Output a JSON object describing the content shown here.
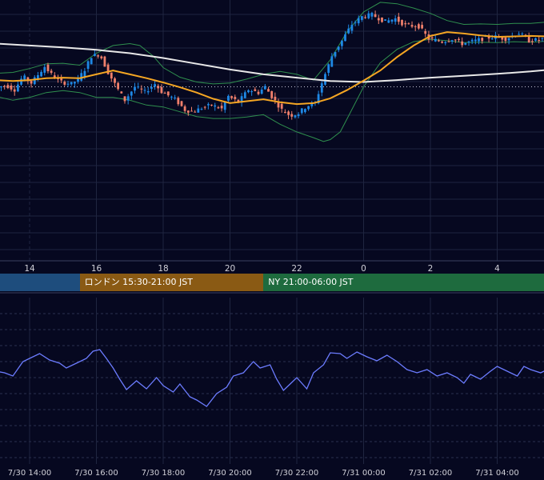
{
  "chart_data": {
    "type": "candlestick",
    "x_ticks_top": [
      "14",
      "16",
      "18",
      "20",
      "22",
      "0",
      "2",
      "4"
    ],
    "x_ticks_bottom": [
      "7/30 14:00",
      "7/30 16:00",
      "7/30 18:00",
      "7/30 20:00",
      "7/30 22:00",
      "7/31 00:00",
      "7/31 02:00",
      "7/31 04:00"
    ],
    "sessions": [
      {
        "label": "",
        "color": "#1e4d7d",
        "start_hour": 13.0,
        "end_hour": 15.5
      },
      {
        "label": "ロンドン 15:30-21:00 JST",
        "color": "#8a5a14",
        "start_hour": 15.5,
        "end_hour": 21.0
      },
      {
        "label": "NY 21:00-06:00 JST",
        "color": "#1e6b3e",
        "start_hour": 21.0,
        "end_hour": 30.0
      }
    ],
    "colors": {
      "background": "#060820",
      "up": "#1e88e5",
      "down": "#ef7f6b",
      "sma_short": "#f5a623",
      "sma_long": "#e8e8e8",
      "bands": "#2f8f4e",
      "oscillator": "#6c7cff",
      "grid": "#1f2540"
    },
    "candle_path": [
      [
        13.0,
        -0.2
      ],
      [
        13.35,
        0.3
      ],
      [
        13.6,
        -0.6
      ],
      [
        13.85,
        2.2
      ],
      [
        14.1,
        0.8
      ],
      [
        14.5,
        4.2
      ],
      [
        14.75,
        2.2
      ],
      [
        15.0,
        1.0
      ],
      [
        15.3,
        0.6
      ],
      [
        15.5,
        1.6
      ],
      [
        15.7,
        3.6
      ],
      [
        15.9,
        6.4
      ],
      [
        16.15,
        6.8
      ],
      [
        16.4,
        3.0
      ],
      [
        16.7,
        -0.6
      ],
      [
        16.9,
        -2.8
      ],
      [
        17.2,
        0.0
      ],
      [
        17.5,
        -1.1
      ],
      [
        17.8,
        0.6
      ],
      [
        18.0,
        -1.0
      ],
      [
        18.4,
        -2.6
      ],
      [
        18.7,
        -4.8
      ],
      [
        18.95,
        -5.2
      ],
      [
        19.2,
        -4.4
      ],
      [
        19.5,
        -3.8
      ],
      [
        19.8,
        -4.6
      ],
      [
        20.0,
        -2.0
      ],
      [
        20.3,
        -3.2
      ],
      [
        20.6,
        -0.6
      ],
      [
        20.9,
        -1.2
      ],
      [
        21.1,
        0.0
      ],
      [
        21.3,
        -2.0
      ],
      [
        21.6,
        -4.8
      ],
      [
        21.85,
        -6.0
      ],
      [
        22.1,
        -5.5
      ],
      [
        22.35,
        -4.0
      ],
      [
        22.6,
        -3.4
      ],
      [
        22.8,
        0.8
      ],
      [
        23.1,
        6.4
      ],
      [
        23.4,
        9.6
      ],
      [
        23.7,
        13.0
      ],
      [
        24.0,
        14.6
      ],
      [
        24.3,
        15.0
      ],
      [
        24.7,
        13.6
      ],
      [
        25.0,
        14.2
      ],
      [
        25.3,
        12.8
      ],
      [
        25.7,
        12.6
      ],
      [
        26.0,
        10.0
      ],
      [
        26.4,
        9.4
      ],
      [
        26.7,
        10.0
      ],
      [
        27.0,
        9.0
      ],
      [
        27.4,
        9.6
      ],
      [
        27.7,
        10.2
      ],
      [
        28.0,
        10.4
      ],
      [
        28.3,
        10.0
      ],
      [
        28.7,
        11.2
      ],
      [
        29.0,
        9.6
      ],
      [
        29.3,
        9.8
      ],
      [
        29.6,
        10.4
      ],
      [
        29.85,
        9.2
      ]
    ],
    "sma_short": [
      [
        13.0,
        1.4
      ],
      [
        13.5,
        1.2
      ],
      [
        14.0,
        1.4
      ],
      [
        14.5,
        1.8
      ],
      [
        15.0,
        1.9
      ],
      [
        15.5,
        1.8
      ],
      [
        16.0,
        2.6
      ],
      [
        16.5,
        3.4
      ],
      [
        17.0,
        2.6
      ],
      [
        17.5,
        1.8
      ],
      [
        18.0,
        0.9
      ],
      [
        18.5,
        -0.1
      ],
      [
        19.0,
        -1.2
      ],
      [
        19.5,
        -2.5
      ],
      [
        20.0,
        -3.4
      ],
      [
        20.5,
        -3.0
      ],
      [
        21.0,
        -2.6
      ],
      [
        21.5,
        -3.2
      ],
      [
        22.0,
        -3.6
      ],
      [
        22.5,
        -3.4
      ],
      [
        23.0,
        -2.4
      ],
      [
        23.5,
        -0.7
      ],
      [
        24.0,
        1.3
      ],
      [
        24.5,
        3.4
      ],
      [
        25.0,
        6.2
      ],
      [
        25.5,
        8.6
      ],
      [
        26.0,
        10.6
      ],
      [
        26.5,
        11.4
      ],
      [
        27.0,
        11.1
      ],
      [
        27.5,
        10.7
      ],
      [
        28.0,
        10.4
      ],
      [
        28.5,
        10.5
      ],
      [
        29.0,
        10.6
      ],
      [
        29.5,
        10.5
      ],
      [
        29.9,
        10.0
      ]
    ],
    "sma_long": [
      [
        13.0,
        9.0
      ],
      [
        14.0,
        8.6
      ],
      [
        15.0,
        8.2
      ],
      [
        16.0,
        7.7
      ],
      [
        17.0,
        7.0
      ],
      [
        18.0,
        6.0
      ],
      [
        19.0,
        4.8
      ],
      [
        20.0,
        3.6
      ],
      [
        21.0,
        2.6
      ],
      [
        22.0,
        1.9
      ],
      [
        23.0,
        1.2
      ],
      [
        24.0,
        1.0
      ],
      [
        25.0,
        1.4
      ],
      [
        26.0,
        1.9
      ],
      [
        27.0,
        2.3
      ],
      [
        28.0,
        2.7
      ],
      [
        29.0,
        3.2
      ],
      [
        29.9,
        3.8
      ]
    ],
    "band_upper": [
      [
        13.0,
        2.8
      ],
      [
        13.5,
        3.0
      ],
      [
        14.0,
        3.8
      ],
      [
        14.5,
        4.8
      ],
      [
        15.0,
        4.9
      ],
      [
        15.5,
        4.5
      ],
      [
        16.0,
        7.0
      ],
      [
        16.5,
        8.6
      ],
      [
        17.0,
        9.0
      ],
      [
        17.3,
        8.6
      ],
      [
        17.7,
        6.4
      ],
      [
        18.0,
        4.0
      ],
      [
        18.5,
        2.0
      ],
      [
        19.0,
        1.0
      ],
      [
        19.5,
        0.6
      ],
      [
        20.0,
        0.8
      ],
      [
        20.5,
        1.6
      ],
      [
        21.0,
        2.6
      ],
      [
        21.5,
        3.2
      ],
      [
        22.0,
        2.6
      ],
      [
        22.5,
        1.4
      ],
      [
        23.0,
        5.6
      ],
      [
        23.5,
        11.4
      ],
      [
        24.0,
        15.6
      ],
      [
        24.5,
        17.6
      ],
      [
        25.0,
        17.3
      ],
      [
        25.5,
        16.4
      ],
      [
        26.0,
        15.3
      ],
      [
        26.5,
        13.8
      ],
      [
        27.0,
        13.0
      ],
      [
        27.5,
        13.1
      ],
      [
        28.0,
        13.0
      ],
      [
        28.5,
        13.2
      ],
      [
        29.0,
        13.2
      ],
      [
        29.5,
        13.5
      ],
      [
        29.9,
        13.4
      ]
    ],
    "band_lower": [
      [
        13.0,
        -2.0
      ],
      [
        13.5,
        -2.8
      ],
      [
        14.0,
        -2.2
      ],
      [
        14.5,
        -1.2
      ],
      [
        15.0,
        -0.8
      ],
      [
        15.5,
        -1.2
      ],
      [
        16.0,
        -2.2
      ],
      [
        16.5,
        -2.2
      ],
      [
        17.0,
        -2.8
      ],
      [
        17.5,
        -3.8
      ],
      [
        18.0,
        -4.2
      ],
      [
        18.5,
        -5.2
      ],
      [
        19.0,
        -6.2
      ],
      [
        19.5,
        -6.6
      ],
      [
        20.0,
        -6.6
      ],
      [
        20.5,
        -6.3
      ],
      [
        21.0,
        -5.8
      ],
      [
        21.5,
        -7.8
      ],
      [
        22.0,
        -9.4
      ],
      [
        22.5,
        -10.6
      ],
      [
        22.8,
        -11.4
      ],
      [
        23.0,
        -11.0
      ],
      [
        23.3,
        -9.4
      ],
      [
        23.6,
        -5.4
      ],
      [
        24.0,
        0.0
      ],
      [
        24.5,
        5.0
      ],
      [
        25.0,
        7.8
      ],
      [
        25.5,
        9.4
      ],
      [
        26.0,
        9.9
      ],
      [
        26.5,
        9.6
      ],
      [
        27.0,
        9.2
      ],
      [
        27.5,
        9.3
      ],
      [
        28.0,
        9.2
      ],
      [
        28.5,
        9.4
      ],
      [
        29.0,
        9.3
      ],
      [
        29.5,
        9.5
      ],
      [
        29.9,
        9.4
      ]
    ],
    "oscillator": [
      [
        13.0,
        46
      ],
      [
        13.25,
        44
      ],
      [
        13.5,
        40
      ],
      [
        13.8,
        58
      ],
      [
        14.0,
        62
      ],
      [
        14.3,
        68
      ],
      [
        14.6,
        60
      ],
      [
        14.9,
        56
      ],
      [
        15.1,
        50
      ],
      [
        15.4,
        56
      ],
      [
        15.7,
        62
      ],
      [
        15.9,
        71
      ],
      [
        16.1,
        73
      ],
      [
        16.3,
        62
      ],
      [
        16.5,
        50
      ],
      [
        16.7,
        36
      ],
      [
        16.9,
        23
      ],
      [
        17.2,
        34
      ],
      [
        17.5,
        24
      ],
      [
        17.8,
        38
      ],
      [
        18.0,
        28
      ],
      [
        18.3,
        20
      ],
      [
        18.5,
        30
      ],
      [
        18.8,
        14
      ],
      [
        19.0,
        10
      ],
      [
        19.3,
        2
      ],
      [
        19.6,
        18
      ],
      [
        19.9,
        26
      ],
      [
        20.1,
        40
      ],
      [
        20.4,
        44
      ],
      [
        20.7,
        58
      ],
      [
        20.9,
        50
      ],
      [
        21.2,
        54
      ],
      [
        21.4,
        36
      ],
      [
        21.6,
        22
      ],
      [
        21.8,
        30
      ],
      [
        22.0,
        38
      ],
      [
        22.3,
        24
      ],
      [
        22.5,
        44
      ],
      [
        22.8,
        54
      ],
      [
        23.0,
        69
      ],
      [
        23.3,
        68
      ],
      [
        23.5,
        62
      ],
      [
        23.8,
        70
      ],
      [
        24.1,
        64
      ],
      [
        24.4,
        59
      ],
      [
        24.7,
        66
      ],
      [
        25.0,
        58
      ],
      [
        25.3,
        48
      ],
      [
        25.6,
        44
      ],
      [
        25.9,
        48
      ],
      [
        26.2,
        40
      ],
      [
        26.5,
        44
      ],
      [
        26.8,
        38
      ],
      [
        27.0,
        31
      ],
      [
        27.2,
        42
      ],
      [
        27.5,
        36
      ],
      [
        27.8,
        46
      ],
      [
        28.0,
        52
      ],
      [
        28.3,
        46
      ],
      [
        28.6,
        40
      ],
      [
        28.8,
        52
      ],
      [
        29.0,
        48
      ],
      [
        29.3,
        44
      ],
      [
        29.6,
        50
      ],
      [
        29.9,
        54
      ]
    ]
  }
}
